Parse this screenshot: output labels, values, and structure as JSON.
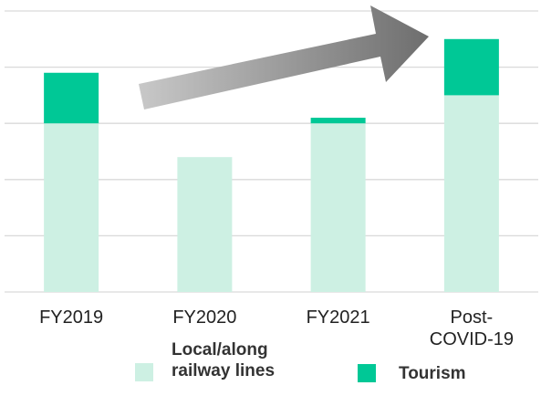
{
  "chart_data": {
    "type": "bar",
    "stacked": true,
    "categories": [
      "FY2019",
      "FY2020",
      "FY2021",
      "Post-COVID-19"
    ],
    "series": [
      {
        "name": "Local/along railway lines",
        "color": "#cdf0e3",
        "values": [
          3.0,
          2.4,
          3.0,
          3.5
        ]
      },
      {
        "name": "Tourism",
        "color": "#00c896",
        "values": [
          0.9,
          0,
          0.1,
          1.0
        ]
      }
    ],
    "ylim": [
      0,
      5
    ],
    "yticks": [
      0,
      1,
      2,
      3,
      4,
      5
    ],
    "grid": true
  }
}
